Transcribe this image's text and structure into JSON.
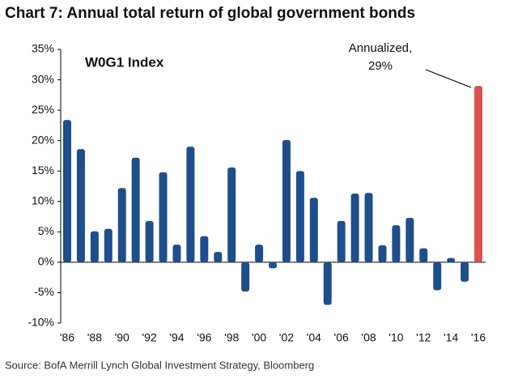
{
  "chart_data": {
    "type": "bar",
    "title": "Chart 7: Annual total return of global government bonds",
    "annotations": [
      "W0G1 Index",
      "Annualized,",
      "29%"
    ],
    "source": "Source: BofA Merrill Lynch Global Investment Strategy, Bloomberg",
    "categories": [
      "'86",
      null,
      "'88",
      null,
      "'90",
      null,
      "'92",
      null,
      "'94",
      null,
      "'96",
      null,
      "'98",
      null,
      "'00",
      null,
      "'02",
      null,
      "'04",
      null,
      "'06",
      null,
      "'08",
      null,
      "'10",
      null,
      "'12",
      null,
      "'14",
      null,
      "'16"
    ],
    "values": [
      23.4,
      18.6,
      5.1,
      5.5,
      12.2,
      17.2,
      6.8,
      14.8,
      2.9,
      19.0,
      4.3,
      1.7,
      15.6,
      -4.8,
      2.9,
      -1,
      20.1,
      15.0,
      10.6,
      -7,
      6.8,
      11.3,
      11.4,
      2.8,
      6.1,
      7.3,
      2.3,
      -4.6,
      0.7,
      -3.2,
      29
    ],
    "colors": [
      "#1f4e8c",
      "#1f4e8c",
      "#1f4e8c",
      "#1f4e8c",
      "#1f4e8c",
      "#1f4e8c",
      "#1f4e8c",
      "#1f4e8c",
      "#1f4e8c",
      "#1f4e8c",
      "#1f4e8c",
      "#1f4e8c",
      "#1f4e8c",
      "#1f4e8c",
      "#1f4e8c",
      "#1f4e8c",
      "#1f4e8c",
      "#1f4e8c",
      "#1f4e8c",
      "#1f4e8c",
      "#1f4e8c",
      "#1f4e8c",
      "#1f4e8c",
      "#1f4e8c",
      "#1f4e8c",
      "#1f4e8c",
      "#1f4e8c",
      "#1f4e8c",
      "#1f4e8c",
      "#1f4e8c",
      "#d9534f"
    ],
    "ylim": [
      -10,
      35
    ],
    "yticks": [
      {
        "value": -10,
        "label": "-10%"
      },
      {
        "value": -5,
        "label": "-5%"
      },
      {
        "value": 0,
        "label": "0%"
      },
      {
        "value": 5,
        "label": "5%"
      },
      {
        "value": 10,
        "label": "10%"
      },
      {
        "value": 15,
        "label": "15%"
      },
      {
        "value": 20,
        "label": "20%"
      },
      {
        "value": 25,
        "label": "25%"
      },
      {
        "value": 30,
        "label": "30%"
      },
      {
        "value": 35,
        "label": "35%"
      }
    ],
    "grid": false
  }
}
